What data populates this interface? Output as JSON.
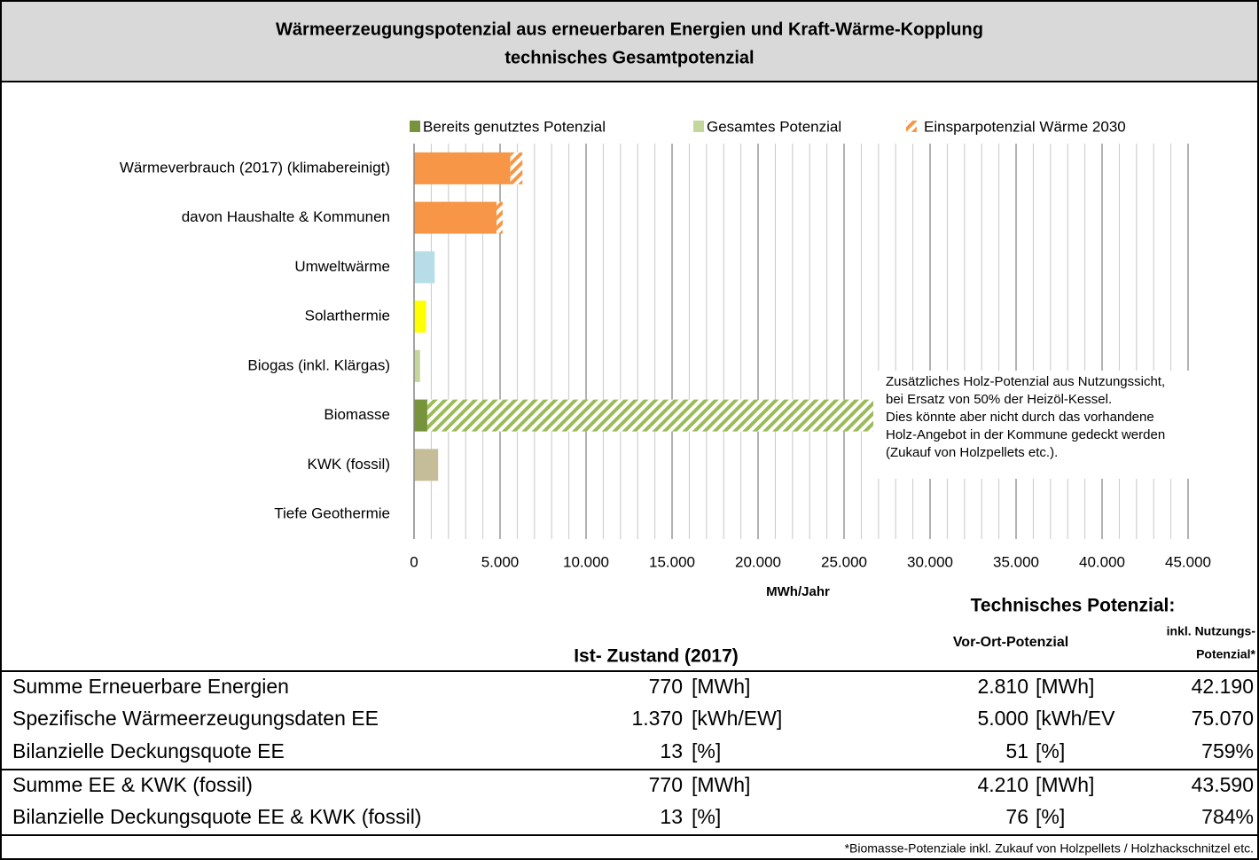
{
  "header": {
    "title_lines": [
      "Wärmeerzeugungspotenzial aus erneuerbaren Energien und Kraft-Wärme-Kopplung",
      "technisches Gesamtpotenzial"
    ]
  },
  "chart_data": {
    "type": "hbar_stacked",
    "categories": [
      "Wärmeverbrauch  (2017) (klimabereinigt)",
      "davon Haushalte & Kommunen",
      "Umweltwärme",
      "Solarthermie",
      "Biogas (inkl. Klärgas)",
      "Biomasse",
      "KWK (fossil)",
      "Tiefe Geothermie"
    ],
    "series": [
      {
        "name": "Bereits genutztes Potenzial",
        "color": "#77933c",
        "values": [
          null,
          null,
          null,
          null,
          null,
          770,
          null,
          null
        ]
      },
      {
        "name": "Gesamtes Potenzial",
        "color": "#c3d69b",
        "colors": [
          "#f79646",
          "#f79646",
          "#b7dde8",
          "#ffff00",
          "#c3d69b",
          "#9bbb59",
          "#c4bd97",
          null
        ],
        "hatched": [
          false,
          false,
          false,
          false,
          false,
          true,
          false,
          false
        ],
        "values": [
          5600,
          4800,
          1200,
          700,
          350,
          25930,
          1400,
          null
        ]
      },
      {
        "name": "Einsparpotenzial Wärme 2030",
        "color": "#f79646",
        "hatched_series": true,
        "values": [
          700,
          350,
          null,
          null,
          null,
          null,
          null,
          null
        ]
      }
    ],
    "xlim": [
      0,
      45000
    ],
    "xticks": [
      0,
      {
        "value": 5000,
        "label": "5.000"
      },
      {
        "value": 10000,
        "label": "10.000"
      },
      {
        "value": 15000,
        "label": "15.000"
      },
      {
        "value": 20000,
        "label": "20.000"
      },
      {
        "value": 25000,
        "label": "25.000"
      },
      {
        "value": 30000,
        "label": "30.000"
      },
      {
        "value": 35000,
        "label": "35.000"
      },
      {
        "value": 40000,
        "label": "40.000"
      },
      {
        "value": 45000,
        "label": "45.000"
      }
    ],
    "minor_grid_step": 1000,
    "xlabel": "MWh/Jahr",
    "annotation_lines": [
      "Zusätzliches Holz-Potenzial aus Nutzungssicht,",
      "bei Ersatz von 50% der Heizöl-Kessel.",
      "Dies könnte aber nicht durch das vorhandene",
      "Holz-Angebot in der Kommune gedeckt werden",
      "(Zukauf von Holzpellets etc.)."
    ]
  },
  "table": {
    "group_header": "Technisches Potenzial:",
    "col_ist": "Ist- Zustand (2017)",
    "col_vor": "Vor-Ort-Potenzial",
    "col_inkl_lines": [
      "inkl. Nutzungs-",
      "Potenzial*"
    ],
    "rows": [
      [
        "Summe Erneuerbare Energien",
        "770",
        "[MWh]",
        "2.810",
        "[MWh]",
        "42.190"
      ],
      [
        "Spezifische Wärmeerzeugungsdaten EE",
        "1.370",
        "[kWh/EW]",
        "5.000",
        "[kWh/EV",
        "75.070"
      ],
      [
        "Bilanzielle Deckungsquote EE",
        "13",
        "[%]",
        "51",
        "[%]",
        "759%"
      ],
      [
        "Summe EE & KWK (fossil)",
        "770",
        "[MWh]",
        "4.210",
        "[MWh]",
        "43.590"
      ],
      [
        "Bilanzielle Deckungsquote EE & KWK (fossil)",
        "13",
        "[%]",
        "76",
        "[%]",
        "784%"
      ]
    ],
    "footnote": "*Biomasse-Potenziale inkl. Zukauf von Holzpellets / Holzhackschnitzel etc."
  }
}
